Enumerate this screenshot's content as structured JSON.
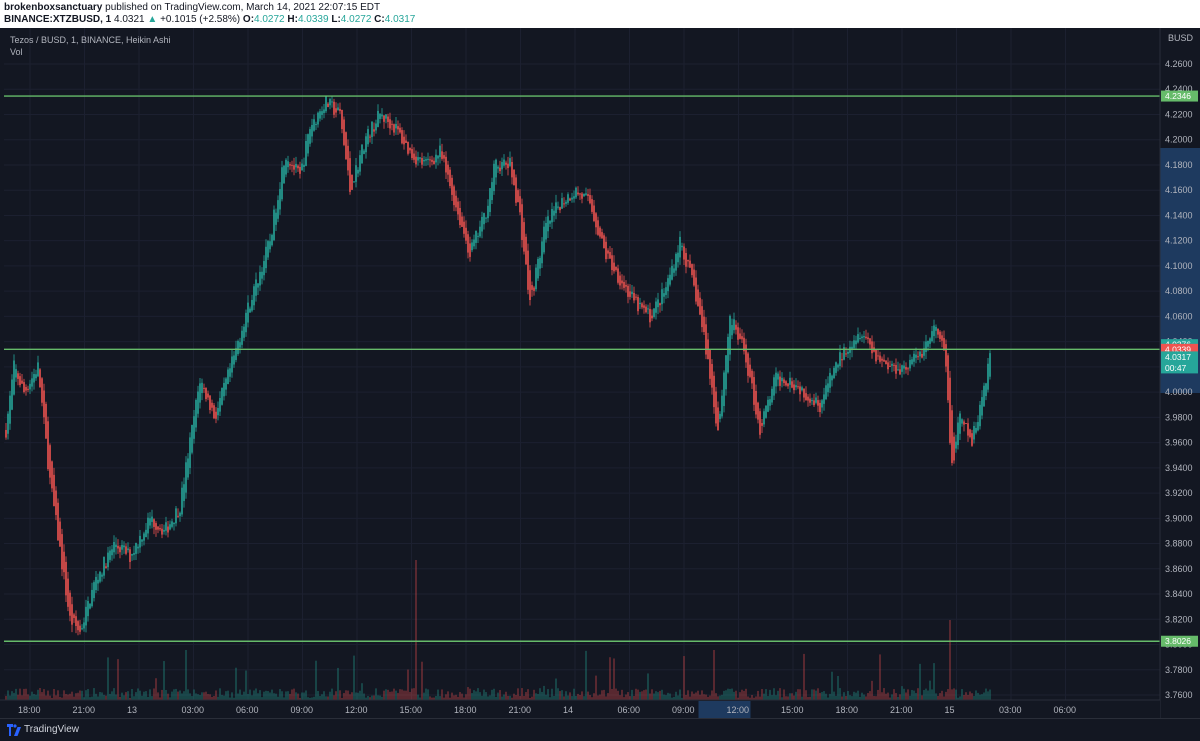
{
  "header": {
    "user": "brokenboxsanctuary",
    "published": " published on TradingView.com, March 14, 2021 22:07:15 EDT",
    "symbol": "BINANCE:XTZBUSD, 1",
    "last": "4.0321",
    "change": "+0.1015 (+2.58%)",
    "o_label": "O:",
    "o": "4.0272",
    "h_label": "H:",
    "h": "4.0339",
    "l_label": "L:",
    "l": "4.0272",
    "c_label": "C:",
    "c": "4.0317"
  },
  "legend": {
    "title": "Tezos / BUSD, 1, BINANCE, Heikin Ashi",
    "vol": "Vol"
  },
  "footer": {
    "brand": "TradingView"
  },
  "colors": {
    "up": "#26a69a",
    "down": "#ef5350",
    "level": "#66bb6a",
    "background": "#131722",
    "current_axis": "#1e3a5f"
  },
  "chart_data": {
    "type": "candlestick",
    "chart_style": "Heikin Ashi",
    "currency": "BUSD",
    "y_ticks": [
      "4.2600",
      "4.2400",
      "4.2200",
      "4.2000",
      "4.1800",
      "4.1600",
      "4.1400",
      "4.1200",
      "4.1000",
      "4.0800",
      "4.0600",
      "4.0400",
      "4.0200",
      "4.0000",
      "3.9800",
      "3.9600",
      "3.9400",
      "3.9200",
      "3.9000",
      "3.8800",
      "3.8600",
      "3.8400",
      "3.8200",
      "3.8000",
      "3.7800",
      "3.7600"
    ],
    "ylim": [
      3.76,
      4.26
    ],
    "x_ticks": [
      "18:00",
      "21:00",
      "13",
      "03:00",
      "06:00",
      "09:00",
      "12:00",
      "15:00",
      "18:00",
      "21:00",
      "14",
      "06:00",
      "09:00",
      "12:00",
      "15:00",
      "18:00",
      "21:00",
      "15",
      "03:00",
      "06:00"
    ],
    "highlight_x_tick": "12:00",
    "horizontal_levels": [
      {
        "value": 4.2346,
        "label": "4.2346"
      },
      {
        "value": 4.0339,
        "label": null
      },
      {
        "value": 3.8026,
        "label": "3.8026"
      }
    ],
    "price_badges": [
      {
        "label": "4.0376",
        "value": 4.0376,
        "color": "#26a69a"
      },
      {
        "label": "4.0339",
        "value": 4.0339,
        "color": "#ef5350"
      },
      {
        "label": "4.0317",
        "value": 4.0317,
        "color": "#26a69a",
        "sub": "00:47"
      }
    ],
    "price_path_anchors": [
      [
        0,
        3.99
      ],
      [
        6,
        3.97
      ],
      [
        14,
        4.02
      ],
      [
        24,
        4.0
      ],
      [
        38,
        4.02
      ],
      [
        50,
        3.93
      ],
      [
        70,
        3.82
      ],
      [
        80,
        3.81
      ],
      [
        95,
        3.85
      ],
      [
        115,
        3.88
      ],
      [
        130,
        3.87
      ],
      [
        150,
        3.9
      ],
      [
        165,
        3.89
      ],
      [
        180,
        3.91
      ],
      [
        200,
        4.01
      ],
      [
        215,
        3.98
      ],
      [
        235,
        4.03
      ],
      [
        245,
        4.06
      ],
      [
        258,
        4.09
      ],
      [
        270,
        4.12
      ],
      [
        285,
        4.19
      ],
      [
        300,
        4.17
      ],
      [
        310,
        4.21
      ],
      [
        325,
        4.23
      ],
      [
        340,
        4.22
      ],
      [
        350,
        4.16
      ],
      [
        365,
        4.2
      ],
      [
        380,
        4.22
      ],
      [
        395,
        4.21
      ],
      [
        410,
        4.19
      ],
      [
        425,
        4.18
      ],
      [
        440,
        4.19
      ],
      [
        455,
        4.15
      ],
      [
        470,
        4.11
      ],
      [
        485,
        4.14
      ],
      [
        495,
        4.18
      ],
      [
        510,
        4.18
      ],
      [
        520,
        4.14
      ],
      [
        530,
        4.07
      ],
      [
        545,
        4.13
      ],
      [
        560,
        4.15
      ],
      [
        575,
        4.16
      ],
      [
        590,
        4.15
      ],
      [
        605,
        4.11
      ],
      [
        620,
        4.09
      ],
      [
        635,
        4.07
      ],
      [
        650,
        4.06
      ],
      [
        665,
        4.08
      ],
      [
        680,
        4.12
      ],
      [
        695,
        4.08
      ],
      [
        705,
        4.04
      ],
      [
        718,
        3.97
      ],
      [
        730,
        4.06
      ],
      [
        745,
        4.03
      ],
      [
        760,
        3.97
      ],
      [
        775,
        4.01
      ],
      [
        790,
        4.01
      ],
      [
        805,
        4.0
      ],
      [
        820,
        3.99
      ],
      [
        835,
        4.02
      ],
      [
        850,
        4.04
      ],
      [
        862,
        4.05
      ],
      [
        875,
        4.03
      ],
      [
        890,
        4.02
      ],
      [
        905,
        4.02
      ],
      [
        920,
        4.03
      ],
      [
        935,
        4.05
      ],
      [
        945,
        4.03
      ],
      [
        952,
        3.94
      ],
      [
        960,
        3.98
      ],
      [
        972,
        3.96
      ],
      [
        983,
        4.0
      ],
      [
        990,
        4.03
      ]
    ]
  }
}
